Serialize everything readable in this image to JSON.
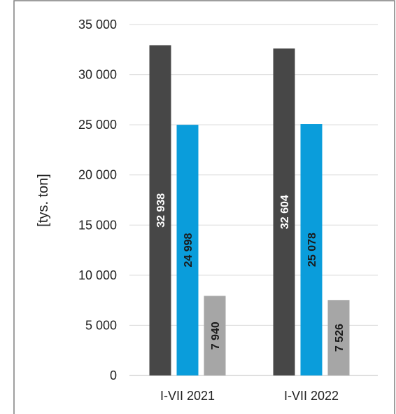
{
  "chart_data": {
    "type": "bar",
    "title": "",
    "xlabel": "",
    "ylabel": "[tys. ton]",
    "ylim": [
      0,
      35000
    ],
    "ytick_values": [
      0,
      5000,
      10000,
      15000,
      20000,
      25000,
      30000,
      35000
    ],
    "ytick_labels": [
      "0",
      "5 000",
      "10 000",
      "15 000",
      "20 000",
      "25 000",
      "30 000",
      "35 000"
    ],
    "categories": [
      "I-VII 2021",
      "I-VII 2022"
    ],
    "grid": true,
    "legend": "none",
    "series": [
      {
        "values": [
          32938,
          32604
        ],
        "labels": [
          "32 938",
          "32 604"
        ],
        "color": "#474747",
        "label_color": "#ffffff"
      },
      {
        "values": [
          24998,
          25078
        ],
        "labels": [
          "24 998",
          "25 078"
        ],
        "color": "#0a9ddb",
        "label_color": "#1a1a1a"
      },
      {
        "values": [
          7940,
          7526
        ],
        "labels": [
          "7 940",
          "7 526"
        ],
        "color": "#a6a6a6",
        "label_color": "#1a1a1a"
      }
    ]
  }
}
